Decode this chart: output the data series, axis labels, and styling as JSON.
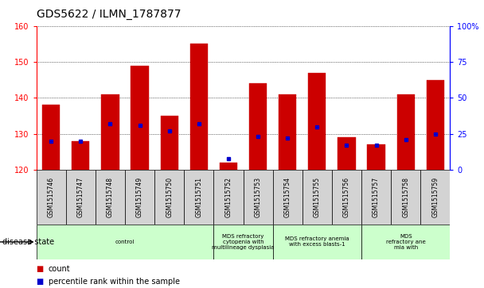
{
  "title": "GDS5622 / ILMN_1787877",
  "samples": [
    "GSM1515746",
    "GSM1515747",
    "GSM1515748",
    "GSM1515749",
    "GSM1515750",
    "GSM1515751",
    "GSM1515752",
    "GSM1515753",
    "GSM1515754",
    "GSM1515755",
    "GSM1515756",
    "GSM1515757",
    "GSM1515758",
    "GSM1515759"
  ],
  "counts": [
    138,
    128,
    141,
    149,
    135,
    155,
    122,
    144,
    141,
    147,
    129,
    127,
    141,
    145
  ],
  "percentile_ranks": [
    20,
    20,
    32,
    31,
    27,
    32,
    8,
    23,
    22,
    30,
    17,
    17,
    21,
    25
  ],
  "y_min": 120,
  "y_max": 160,
  "y_ticks": [
    120,
    130,
    140,
    150,
    160
  ],
  "y2_ticks": [
    0,
    25,
    50,
    75,
    100
  ],
  "bar_color": "#cc0000",
  "dot_color": "#0000cc",
  "group_spans": [
    {
      "start": 0,
      "end": 6,
      "label": "control"
    },
    {
      "start": 6,
      "end": 8,
      "label": "MDS refractory\ncytopenia with\nmultilineage dysplasia"
    },
    {
      "start": 8,
      "end": 11,
      "label": "MDS refractory anemia\nwith excess blasts-1"
    },
    {
      "start": 11,
      "end": 14,
      "label": "MDS\nrefractory ane\nmia with"
    }
  ],
  "legend_count_label": "count",
  "legend_pct_label": "percentile rank within the sample",
  "disease_state_label": "disease state",
  "bg_gray": "#d3d3d3",
  "bg_green": "#ccffcc"
}
